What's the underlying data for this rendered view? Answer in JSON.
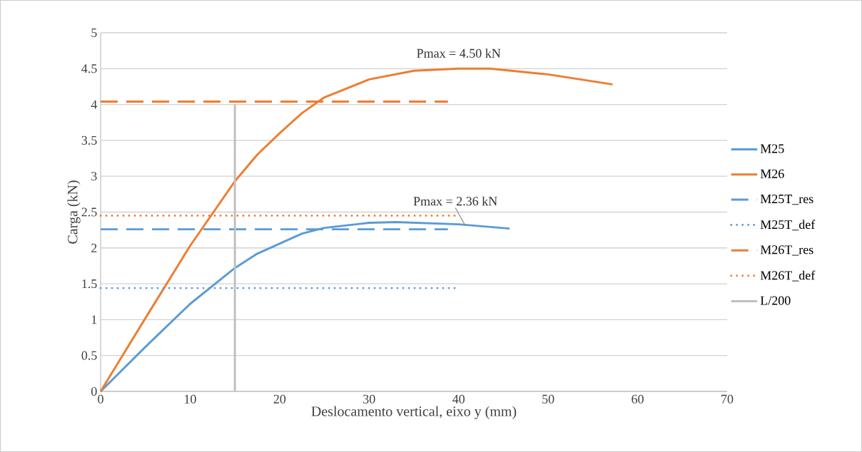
{
  "chart_data": {
    "type": "line",
    "xlabel": "Deslocamento vertical, eixo y (mm)",
    "ylabel": "Carga (kN)",
    "xlim": [
      0,
      70
    ],
    "ylim": [
      0,
      5
    ],
    "xticks": [
      0,
      10,
      20,
      30,
      40,
      50,
      60,
      70
    ],
    "yticks": [
      0,
      0.5,
      1,
      1.5,
      2,
      2.5,
      3,
      3.5,
      4,
      4.5,
      5
    ],
    "grid": "y",
    "legend": "right",
    "series": [
      {
        "name": "M25",
        "color": "#5b9bd5",
        "line_style": "solid",
        "x": [
          0,
          5,
          10,
          15,
          17.5,
          20,
          22.5,
          25,
          30,
          33,
          40,
          45.7
        ],
        "values": [
          0,
          0.62,
          1.22,
          1.72,
          1.92,
          2.06,
          2.2,
          2.28,
          2.35,
          2.36,
          2.33,
          2.27
        ]
      },
      {
        "name": "M26",
        "color": "#ed7d31",
        "line_style": "solid",
        "x": [
          0,
          5,
          10,
          15,
          17.5,
          20,
          22.5,
          25,
          30,
          35,
          40,
          43.5,
          50,
          57.2
        ],
        "values": [
          0,
          1.02,
          2.03,
          2.93,
          3.3,
          3.6,
          3.88,
          4.1,
          4.35,
          4.47,
          4.5,
          4.5,
          4.42,
          4.28
        ]
      },
      {
        "name": "M25T_res",
        "color": "#5b9bd5",
        "line_style": "dashed",
        "x": [
          0,
          38.8
        ],
        "values": [
          2.26,
          2.26
        ]
      },
      {
        "name": "M25T_def",
        "color": "#5b9bd5",
        "line_style": "dotted",
        "x": [
          0,
          39.8
        ],
        "values": [
          1.44,
          1.44
        ]
      },
      {
        "name": "M26T_res",
        "color": "#ed7d31",
        "line_style": "dashed",
        "x": [
          0,
          38.8
        ],
        "values": [
          4.04,
          4.04
        ]
      },
      {
        "name": "M26T_def",
        "color": "#ed7d31",
        "line_style": "dotted",
        "x": [
          0,
          39.8
        ],
        "values": [
          2.45,
          2.45
        ]
      },
      {
        "name": "L/200",
        "color": "#bfbfbf",
        "line_style": "solid",
        "x": [
          15,
          15
        ],
        "values": [
          0,
          4.0
        ]
      }
    ],
    "annotations": [
      {
        "text": "Pmax = 4.50 kN",
        "x": 40,
        "y": 4.5
      },
      {
        "text": "Pmax = 2.36 kN",
        "x": 40.7,
        "y": 2.32
      }
    ]
  }
}
